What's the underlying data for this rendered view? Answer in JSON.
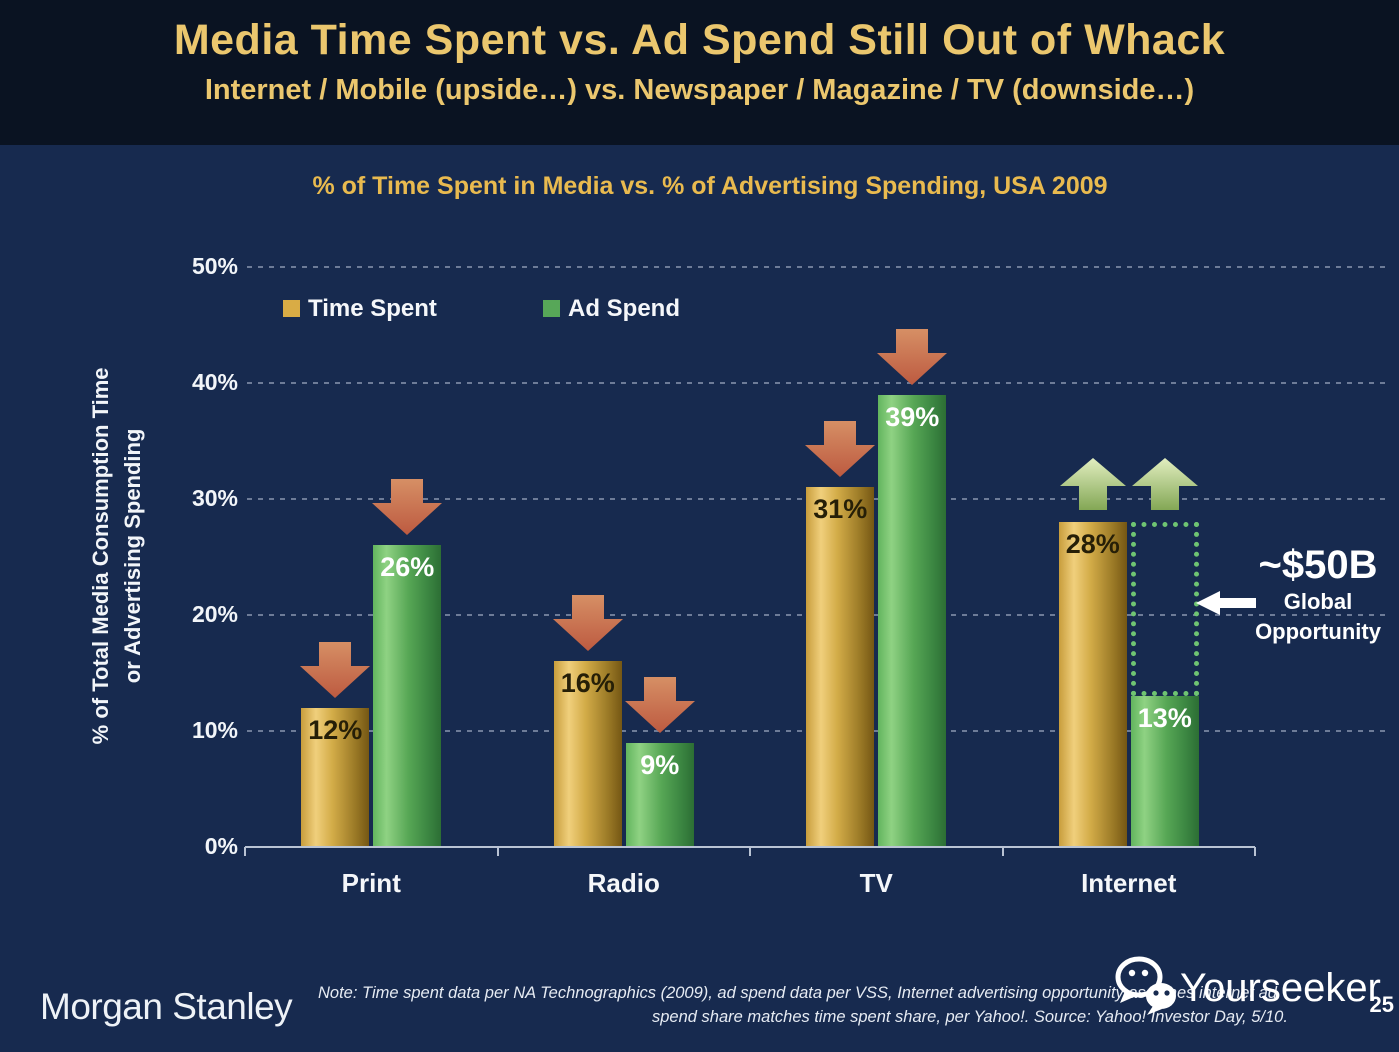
{
  "header": {
    "title": "Media Time Spent vs. Ad Spend Still Out of Whack",
    "subtitle": "Internet / Mobile (upside…) vs. Newspaper / Magazine / TV (downside…)"
  },
  "chart": {
    "title": "% of Time Spent in Media vs. % of Advertising Spending, USA 2009",
    "y_axis_label_line1": "% of Total Media Consumption Time",
    "y_axis_label_line2": "or Advertising Spending",
    "legend": [
      {
        "label": "Time Spent",
        "color": "#d9ac45"
      },
      {
        "label": "Ad Spend",
        "color": "#57a758"
      }
    ]
  },
  "chart_data": {
    "type": "bar",
    "title": "% of Time Spent in Media vs. % of Advertising Spending, USA 2009",
    "categories": [
      "Print",
      "Radio",
      "TV",
      "Internet"
    ],
    "series": [
      {
        "name": "Time Spent",
        "values": [
          12,
          16,
          31,
          28
        ],
        "color": "#d9ac45",
        "value_labels": [
          "12%",
          "16%",
          "31%",
          "28%"
        ]
      },
      {
        "name": "Ad Spend",
        "values": [
          26,
          9,
          39,
          13
        ],
        "color": "#57a758",
        "value_labels": [
          "26%",
          "9%",
          "39%",
          "13%"
        ]
      }
    ],
    "arrows": [
      [
        "down",
        "down"
      ],
      [
        "down",
        "down"
      ],
      [
        "down",
        "down"
      ],
      [
        "up",
        "up"
      ]
    ],
    "xlabel": "",
    "ylabel": "% of Total Media Consumption Time or Advertising Spending",
    "ylim": [
      0,
      50
    ],
    "y_ticks": [
      "0%",
      "10%",
      "20%",
      "30%",
      "40%",
      "50%"
    ],
    "grid": "horizontal-dashed",
    "legend_position": "top-left-inside",
    "opportunity_box": {
      "category": "Internet",
      "from_pct": 13,
      "to_pct": 28,
      "label": "~$50B Global Opportunity"
    }
  },
  "annotation": {
    "amount": "~$50B",
    "label_line1": "Global",
    "label_line2": "Opportunity"
  },
  "footer": {
    "brand": "Morgan Stanley",
    "note_line1": "Note: Time spent data per NA Technographics (2009), ad spend data per VSS, Internet advertising opportunity assumes internet ad",
    "note_line2": "spend share matches time spent share, per Yahoo!. Source: Yahoo! Investor Day, 5/10.",
    "page_number": "25",
    "watermark_text": "Yourseeker"
  },
  "colors": {
    "background": "#172a4f",
    "header_background": "#0a1322",
    "title_gold": "#ebc76e",
    "chart_title_gold": "#e9ba4f",
    "bar_gold": "#d9ac45",
    "bar_green": "#57a758",
    "down_arrow_red": "#c05c41",
    "up_arrow_green": "#a9c479",
    "opportunity_dotted_green": "#6fc472",
    "axis_line": "#b9c3d4",
    "text_white": "#f2f5f9"
  },
  "icons": {
    "watermark": "wechat-logo",
    "annotation_pointer": "left-arrow",
    "trend_negative": "down-block-arrow",
    "trend_positive": "up-block-arrow"
  }
}
